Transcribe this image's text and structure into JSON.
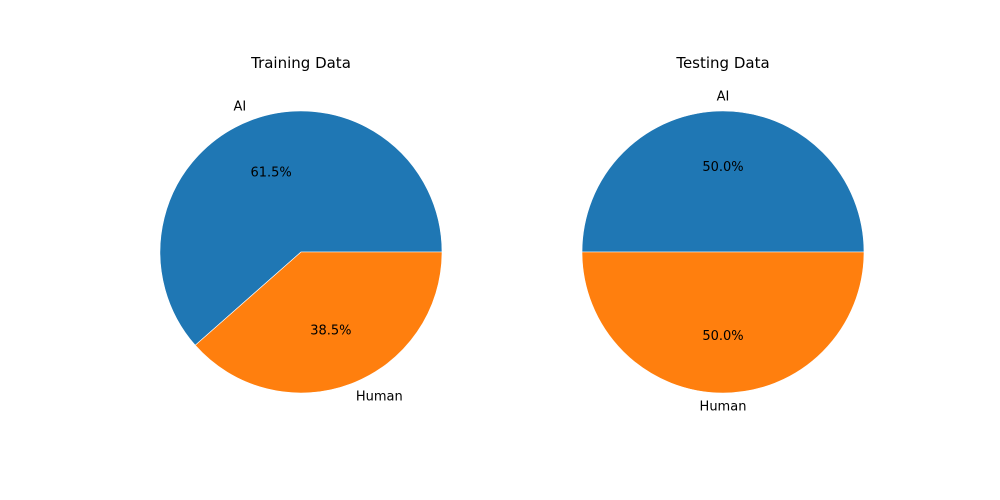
{
  "colors": {
    "series_colors": [
      "#1f77b4",
      "#ff7f0e"
    ],
    "background": "#ffffff",
    "edge": "#ffffff"
  },
  "chart_data": [
    {
      "type": "pie",
      "title": "Training Data",
      "start_angle_deg": 0,
      "direction": "counterclockwise",
      "slices": [
        {
          "label": "AI",
          "value": 61.5,
          "pct_label": "61.5%"
        },
        {
          "label": "Human",
          "value": 38.5,
          "pct_label": "38.5%"
        }
      ]
    },
    {
      "type": "pie",
      "title": "Testing Data",
      "start_angle_deg": 0,
      "direction": "counterclockwise",
      "slices": [
        {
          "label": "AI",
          "value": 50.0,
          "pct_label": "50.0%"
        },
        {
          "label": "Human",
          "value": 50.0,
          "pct_label": "50.0%"
        }
      ]
    }
  ]
}
